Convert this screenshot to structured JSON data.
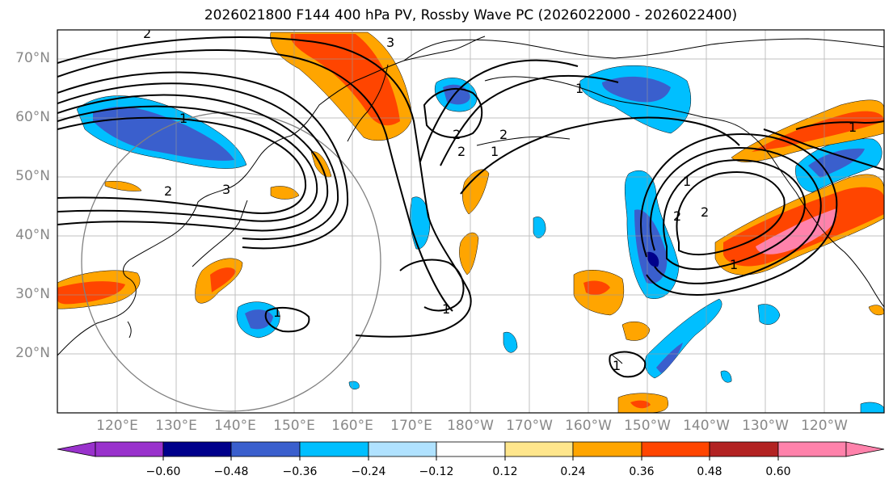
{
  "title": "2026021800 F144 400 hPa PV, Rossby Wave PC (2026022000 - 2026022400)",
  "lat_labels": [
    "70°N",
    "60°N",
    "50°N",
    "40°N",
    "30°N",
    "20°N"
  ],
  "lon_labels": [
    "120°E",
    "130°E",
    "140°E",
    "150°E",
    "160°E",
    "170°E",
    "180°W",
    "170°W",
    "160°W",
    "150°W",
    "140°W",
    "130°W",
    "120°W"
  ],
  "contour_labels": [
    "2",
    "2",
    "3",
    "3",
    "1",
    "2",
    "2",
    "2",
    "1",
    "1",
    "2",
    "2",
    "1",
    "1",
    "1",
    "1",
    "1",
    "1"
  ],
  "colorbar": {
    "ticks": [
      "−0.60",
      "−0.48",
      "−0.36",
      "−0.24",
      "−0.12",
      "0.12",
      "0.24",
      "0.36",
      "0.48",
      "0.60"
    ],
    "colors": [
      "#9932cc",
      "#00008b",
      "#3a5fcd",
      "#00bfff",
      "#b0e2ff",
      "#ffffff",
      "#ffe68c",
      "#ffa500",
      "#ff4500",
      "#b22222",
      "#ff82ab",
      "#ffc0cb"
    ]
  },
  "colors": {
    "neg_strong": "#00008b",
    "neg_mid": "#3a5fcd",
    "neg_weak": "#00bfff",
    "neg_faint": "#b0e2ff",
    "pos_faint": "#ffe68c",
    "pos_weak": "#ffa500",
    "pos_mid": "#ff4500",
    "pos_strong": "#b22222",
    "pos_max": "#ff82ab"
  }
}
